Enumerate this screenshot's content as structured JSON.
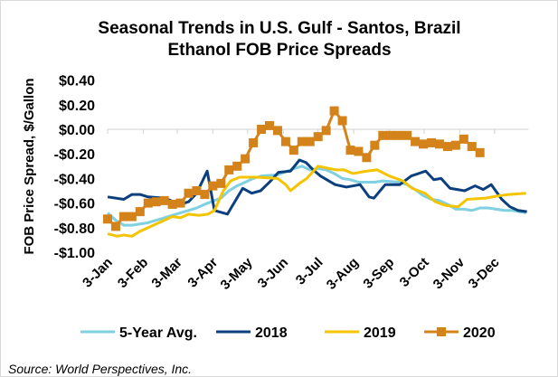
{
  "chart_data": {
    "type": "line",
    "title": [
      "Seasonal Trends in U.S. Gulf - Santos, Brazil",
      "Ethanol FOB Price Spreads"
    ],
    "ylabel": "FOB Price Spread, $/Gallon",
    "xlabel": "",
    "ylim": [
      -1.0,
      0.4
    ],
    "yticks": [
      0.4,
      0.2,
      0.0,
      -0.2,
      -0.4,
      -0.6,
      -0.8,
      -1.0
    ],
    "ytick_labels": [
      "$0.40",
      "$0.20",
      "$0.00",
      "-$0.20",
      "-$0.40",
      "-$0.60",
      "-$0.80",
      "-$1.00"
    ],
    "x_unit": "week of year",
    "xlim": [
      0,
      52
    ],
    "xticks": [
      0,
      4.4,
      8.6,
      13,
      17.3,
      21.7,
      26,
      30.4,
      34.8,
      39.1,
      43.5,
      47.8
    ],
    "xtick_labels": [
      "3-Jan",
      "3-Feb",
      "3-Mar",
      "3-Apr",
      "3-May",
      "3-Jun",
      "3-Jul",
      "3-Aug",
      "3-Sep",
      "3-Oct",
      "3-Nov",
      "3-Dec"
    ],
    "gridlines": "zero-line only",
    "legend_position": "bottom",
    "series": [
      {
        "name": "5-Year Avg.",
        "color": "#7fd0e0",
        "marker": "none",
        "points": [
          [
            0,
            -0.68
          ],
          [
            1,
            -0.74
          ],
          [
            2,
            -0.78
          ],
          [
            3,
            -0.78
          ],
          [
            5,
            -0.76
          ],
          [
            7,
            -0.72
          ],
          [
            9,
            -0.68
          ],
          [
            11,
            -0.64
          ],
          [
            12,
            -0.61
          ],
          [
            14,
            -0.56
          ],
          [
            15,
            -0.5
          ],
          [
            16,
            -0.46
          ],
          [
            17,
            -0.43
          ],
          [
            18,
            -0.4
          ],
          [
            19,
            -0.38
          ],
          [
            21,
            -0.37
          ],
          [
            23,
            -0.32
          ],
          [
            24,
            -0.3
          ],
          [
            25,
            -0.33
          ],
          [
            26,
            -0.32
          ],
          [
            27,
            -0.33
          ],
          [
            28,
            -0.36
          ],
          [
            29,
            -0.4
          ],
          [
            30,
            -0.41
          ],
          [
            31,
            -0.43
          ],
          [
            33,
            -0.43
          ],
          [
            34,
            -0.42
          ],
          [
            36,
            -0.43
          ],
          [
            37,
            -0.45
          ],
          [
            38,
            -0.49
          ],
          [
            39,
            -0.54
          ],
          [
            40,
            -0.57
          ],
          [
            41,
            -0.58
          ],
          [
            42,
            -0.61
          ],
          [
            43,
            -0.65
          ],
          [
            44,
            -0.65
          ],
          [
            45,
            -0.66
          ],
          [
            46,
            -0.64
          ],
          [
            47,
            -0.64
          ],
          [
            48,
            -0.65
          ],
          [
            49,
            -0.66
          ],
          [
            50,
            -0.66
          ],
          [
            51.7,
            -0.68
          ]
        ]
      },
      {
        "name": "2018",
        "color": "#0b3f7e",
        "marker": "none",
        "points": [
          [
            0,
            -0.55
          ],
          [
            2,
            -0.57
          ],
          [
            3,
            -0.53
          ],
          [
            4,
            -0.53
          ],
          [
            5,
            -0.55
          ],
          [
            7,
            -0.56
          ],
          [
            9,
            -0.61
          ],
          [
            10,
            -0.59
          ],
          [
            11,
            -0.52
          ],
          [
            12.3,
            -0.34
          ],
          [
            13.2,
            -0.66
          ],
          [
            14.8,
            -0.69
          ],
          [
            16.7,
            -0.48
          ],
          [
            17.8,
            -0.52
          ],
          [
            18.9,
            -0.5
          ],
          [
            20,
            -0.43
          ],
          [
            21.1,
            -0.35
          ],
          [
            22.6,
            -0.34
          ],
          [
            23.7,
            -0.25
          ],
          [
            24.5,
            -0.27
          ],
          [
            25.4,
            -0.33
          ],
          [
            26.3,
            -0.38
          ],
          [
            28.1,
            -0.45
          ],
          [
            29.5,
            -0.47
          ],
          [
            31.2,
            -0.45
          ],
          [
            32.3,
            -0.55
          ],
          [
            32.9,
            -0.56
          ],
          [
            34.3,
            -0.45
          ],
          [
            36.1,
            -0.45
          ],
          [
            37.5,
            -0.38
          ],
          [
            39.3,
            -0.34
          ],
          [
            40.3,
            -0.41
          ],
          [
            41.2,
            -0.4
          ],
          [
            42.3,
            -0.48
          ],
          [
            44.1,
            -0.5
          ],
          [
            45.4,
            -0.46
          ],
          [
            46.4,
            -0.49
          ],
          [
            47.4,
            -0.45
          ],
          [
            48.7,
            -0.57
          ],
          [
            49.7,
            -0.63
          ],
          [
            50.7,
            -0.66
          ],
          [
            51.8,
            -0.67
          ]
        ]
      },
      {
        "name": "2019",
        "color": "#f5c400",
        "marker": "none",
        "points": [
          [
            0,
            -0.85
          ],
          [
            1.2,
            -0.87
          ],
          [
            2,
            -0.86
          ],
          [
            3,
            -0.87
          ],
          [
            4,
            -0.83
          ],
          [
            6,
            -0.77
          ],
          [
            8,
            -0.71
          ],
          [
            9,
            -0.72
          ],
          [
            10,
            -0.69
          ],
          [
            11.3,
            -0.7
          ],
          [
            12.4,
            -0.69
          ],
          [
            13.2,
            -0.66
          ],
          [
            14.3,
            -0.5
          ],
          [
            15.2,
            -0.42
          ],
          [
            16.3,
            -0.39
          ],
          [
            18.5,
            -0.39
          ],
          [
            21,
            -0.4
          ],
          [
            22,
            -0.45
          ],
          [
            22.6,
            -0.5
          ],
          [
            23.7,
            -0.44
          ],
          [
            24.6,
            -0.4
          ],
          [
            26,
            -0.3
          ],
          [
            28.2,
            -0.33
          ],
          [
            29.2,
            -0.33
          ],
          [
            30.3,
            -0.36
          ],
          [
            32,
            -0.34
          ],
          [
            33.3,
            -0.33
          ],
          [
            34.8,
            -0.38
          ],
          [
            36.5,
            -0.42
          ],
          [
            37.6,
            -0.48
          ],
          [
            39.2,
            -0.52
          ],
          [
            40.5,
            -0.59
          ],
          [
            41.8,
            -0.62
          ],
          [
            43.3,
            -0.63
          ],
          [
            44.4,
            -0.57
          ],
          [
            46.7,
            -0.56
          ],
          [
            48.4,
            -0.54
          ],
          [
            49.6,
            -0.53
          ],
          [
            51.7,
            -0.52
          ]
        ]
      },
      {
        "name": "2020",
        "color": "#d4821a",
        "marker": "square",
        "points": [
          [
            0,
            -0.73
          ],
          [
            1,
            -0.79
          ],
          [
            2,
            -0.71
          ],
          [
            3,
            -0.71
          ],
          [
            4,
            -0.67
          ],
          [
            5,
            -0.6
          ],
          [
            6,
            -0.59
          ],
          [
            7,
            -0.58
          ],
          [
            8,
            -0.61
          ],
          [
            9,
            -0.6
          ],
          [
            10,
            -0.52
          ],
          [
            11,
            -0.5
          ],
          [
            12,
            -0.53
          ],
          [
            13,
            -0.46
          ],
          [
            14,
            -0.44
          ],
          [
            15,
            -0.33
          ],
          [
            16,
            -0.3
          ],
          [
            17,
            -0.24
          ],
          [
            18,
            -0.11
          ],
          [
            19,
            0.0
          ],
          [
            20,
            0.03
          ],
          [
            21,
            -0.01
          ],
          [
            22,
            -0.1
          ],
          [
            23,
            -0.17
          ],
          [
            24,
            -0.1
          ],
          [
            25,
            -0.1
          ],
          [
            26,
            -0.06
          ],
          [
            27,
            -0.01
          ],
          [
            28,
            0.15
          ],
          [
            29,
            0.07
          ],
          [
            30,
            -0.17
          ],
          [
            31,
            -0.18
          ],
          [
            32,
            -0.23
          ],
          [
            33,
            -0.13
          ],
          [
            34,
            -0.05
          ],
          [
            35,
            -0.05
          ],
          [
            36,
            -0.05
          ],
          [
            37,
            -0.05
          ],
          [
            38,
            -0.1
          ],
          [
            39,
            -0.12
          ],
          [
            40,
            -0.11
          ],
          [
            41,
            -0.12
          ],
          [
            42,
            -0.14
          ],
          [
            43,
            -0.13
          ],
          [
            44,
            -0.08
          ],
          [
            45,
            -0.14
          ],
          [
            46,
            -0.19
          ]
        ]
      }
    ]
  },
  "source": "Source: World Perspectives, Inc."
}
